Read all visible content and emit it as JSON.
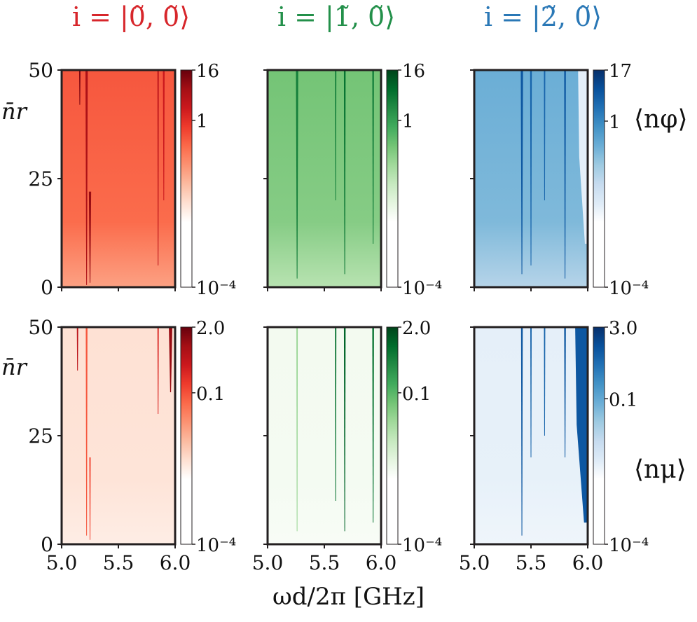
{
  "chart_data": [
    {
      "type": "heatmap",
      "row": "top",
      "column": 1,
      "title": "i = |0̃, 0̃⟩",
      "cmap": "Reds",
      "xlim": [
        5.0,
        6.0
      ],
      "ylim": [
        0,
        50
      ],
      "yticks": [
        "0",
        "25",
        "50"
      ],
      "xticks": [],
      "ylabel": "n̄r",
      "colorbar": {
        "scale": "log",
        "ticks": [
          "16",
          "1",
          "10⁻⁴"
        ],
        "range": [
          0.0001,
          16
        ],
        "label": ""
      },
      "background_level": 0.55,
      "features": [
        {
          "x": 5.16,
          "y_start": 50,
          "y_end": 42,
          "width": 0.012,
          "level": 0.95
        },
        {
          "x": 5.22,
          "y_start": 50,
          "y_end": 0.5,
          "width": 0.02,
          "level": 0.85
        },
        {
          "x": 5.25,
          "y_start": 22,
          "y_end": 1,
          "width": 0.02,
          "level": 0.9
        },
        {
          "x": 5.85,
          "y_start": 50,
          "y_end": 5,
          "width": 0.012,
          "level": 0.8
        },
        {
          "x": 5.9,
          "y_start": 50,
          "y_end": 20,
          "width": 0.015,
          "level": 0.75
        }
      ]
    },
    {
      "type": "heatmap",
      "row": "top",
      "column": 2,
      "title": "i = |1̃, 0̃⟩",
      "cmap": "Greens",
      "xlim": [
        5.0,
        6.0
      ],
      "ylim": [
        0,
        50
      ],
      "yticks": [],
      "xticks": [],
      "ylabel": "",
      "colorbar": {
        "scale": "log",
        "ticks": [
          "16",
          "1",
          "10⁻⁴"
        ],
        "range": [
          0.0001,
          16
        ],
        "label": ""
      },
      "background_level": 0.5,
      "features": [
        {
          "x": 5.26,
          "y_start": 50,
          "y_end": 2,
          "width": 0.02,
          "level": 0.8
        },
        {
          "x": 5.6,
          "y_start": 50,
          "y_end": 20,
          "width": 0.012,
          "level": 0.8
        },
        {
          "x": 5.68,
          "y_start": 50,
          "y_end": 3,
          "width": 0.015,
          "level": 0.85
        },
        {
          "x": 5.93,
          "y_start": 50,
          "y_end": 10,
          "width": 0.015,
          "level": 0.8
        }
      ]
    },
    {
      "type": "heatmap",
      "row": "top",
      "column": 3,
      "title": "i = |2̃, 0̃⟩",
      "cmap": "Blues",
      "xlim": [
        5.0,
        6.0
      ],
      "ylim": [
        0,
        50
      ],
      "yticks": [],
      "xticks": [],
      "ylabel": "",
      "colorbar": {
        "scale": "log",
        "ticks": [
          "17",
          "1",
          "10⁻⁴"
        ],
        "range": [
          0.0001,
          17
        ],
        "label": "⟨nφ⟩"
      },
      "background_level": 0.5,
      "features": [
        {
          "x": 5.42,
          "y_start": 50,
          "y_end": 3,
          "width": 0.02,
          "level": 0.85
        },
        {
          "x": 5.5,
          "y_start": 50,
          "y_end": 5,
          "width": 0.015,
          "level": 0.8
        },
        {
          "x": 5.62,
          "y_start": 50,
          "y_end": 20,
          "width": 0.012,
          "level": 0.8
        },
        {
          "x": 5.8,
          "y_start": 50,
          "y_end": 2,
          "width": 0.015,
          "level": 0.85
        }
      ],
      "edge_region": {
        "x_from": 5.9,
        "x_to": 6.0,
        "y_from": 10,
        "y_to": 50,
        "level": 0.1
      }
    },
    {
      "type": "heatmap",
      "row": "bottom",
      "column": 1,
      "title": "",
      "cmap": "Reds",
      "xlim": [
        5.0,
        6.0
      ],
      "ylim": [
        0,
        50
      ],
      "yticks": [
        "0",
        "25",
        "50"
      ],
      "xticks": [
        "5.0",
        "5.5",
        "6.0"
      ],
      "ylabel": "n̄r",
      "colorbar": {
        "scale": "log",
        "ticks": [
          "2.0",
          "0.1",
          "10⁻⁴"
        ],
        "range": [
          0.0001,
          2.0
        ],
        "label": ""
      },
      "background_level": 0.12,
      "features": [
        {
          "x": 5.14,
          "y_start": 50,
          "y_end": 40,
          "width": 0.012,
          "level": 0.8
        },
        {
          "x": 5.22,
          "y_start": 50,
          "y_end": 2,
          "width": 0.015,
          "level": 0.55
        },
        {
          "x": 5.25,
          "y_start": 20,
          "y_end": 1,
          "width": 0.012,
          "level": 0.6
        },
        {
          "x": 5.85,
          "y_start": 50,
          "y_end": 30,
          "width": 0.012,
          "level": 0.7
        },
        {
          "x": 5.96,
          "y_start": 50,
          "y_end": 35,
          "width": 0.03,
          "level": 0.9
        }
      ]
    },
    {
      "type": "heatmap",
      "row": "bottom",
      "column": 2,
      "title": "",
      "cmap": "Greens",
      "xlim": [
        5.0,
        6.0
      ],
      "ylim": [
        0,
        50
      ],
      "yticks": [],
      "xticks": [
        "5.0",
        "5.5",
        "6.0"
      ],
      "ylabel": "",
      "colorbar": {
        "scale": "log",
        "ticks": [
          "2.0",
          "0.1",
          "10⁻⁴"
        ],
        "range": [
          0.0001,
          2.0
        ],
        "label": ""
      },
      "background_level": 0.06,
      "features": [
        {
          "x": 5.26,
          "y_start": 50,
          "y_end": 3,
          "width": 0.012,
          "level": 0.4
        },
        {
          "x": 5.6,
          "y_start": 50,
          "y_end": 10,
          "width": 0.012,
          "level": 0.85
        },
        {
          "x": 5.68,
          "y_start": 50,
          "y_end": 3,
          "width": 0.015,
          "level": 0.9
        },
        {
          "x": 5.93,
          "y_start": 50,
          "y_end": 5,
          "width": 0.015,
          "level": 0.85
        }
      ]
    },
    {
      "type": "heatmap",
      "row": "bottom",
      "column": 3,
      "title": "",
      "cmap": "Blues",
      "xlim": [
        5.0,
        6.0
      ],
      "ylim": [
        0,
        50
      ],
      "yticks": [],
      "xticks": [
        "5.0",
        "5.5",
        "6.0"
      ],
      "ylabel": "",
      "colorbar": {
        "scale": "log",
        "ticks": [
          "3.0",
          "0.1",
          "10⁻⁴"
        ],
        "range": [
          0.0001,
          3.0
        ],
        "label": "⟨nμ⟩"
      },
      "background_level": 0.1,
      "features": [
        {
          "x": 5.42,
          "y_start": 50,
          "y_end": 2,
          "width": 0.015,
          "level": 0.85
        },
        {
          "x": 5.5,
          "y_start": 50,
          "y_end": 20,
          "width": 0.012,
          "level": 0.8
        },
        {
          "x": 5.62,
          "y_start": 50,
          "y_end": 25,
          "width": 0.012,
          "level": 0.8
        },
        {
          "x": 5.8,
          "y_start": 50,
          "y_end": 20,
          "width": 0.015,
          "level": 0.85
        }
      ],
      "edge_region": {
        "x_from": 5.87,
        "x_to": 6.0,
        "y_from": 5,
        "y_to": 50,
        "level": 0.85
      }
    }
  ],
  "xlabel": "ωd/2π [GHz]",
  "colors": {
    "reds": [
      "#ffffff",
      "#fee0d2",
      "#fcbba1",
      "#fc9272",
      "#fb6a4a",
      "#ef3b2c",
      "#cb181d",
      "#a50f15",
      "#67000d"
    ],
    "greens": [
      "#ffffff",
      "#e5f5e0",
      "#c7e9c0",
      "#a1d99b",
      "#74c476",
      "#41ab5d",
      "#238b45",
      "#006d2c",
      "#00441b"
    ],
    "blues": [
      "#ffffff",
      "#deebf7",
      "#c6dbef",
      "#9ecae1",
      "#6baed6",
      "#4292c6",
      "#2171b5",
      "#08519c",
      "#08306b"
    ],
    "title_red": "#d7262b",
    "title_green": "#23904a",
    "title_blue": "#2a78b6"
  }
}
